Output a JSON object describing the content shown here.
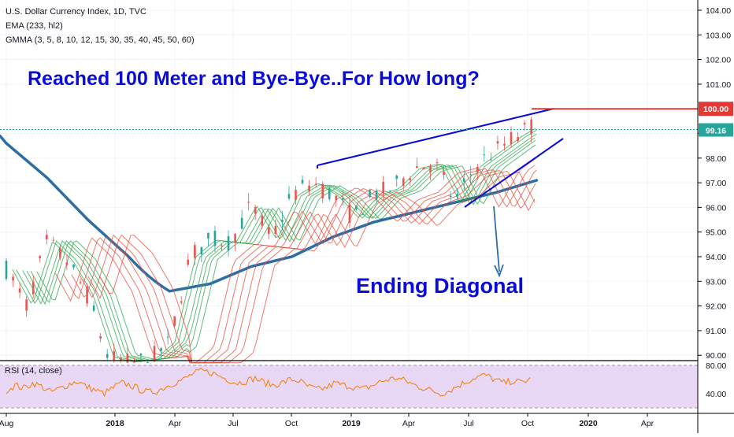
{
  "header": {
    "symbol_line": "U.S. Dollar Currency Index, 1D, TVC",
    "ema_line": "EMA (233, hl2)",
    "gmma_line": "GMMA (3, 5, 8, 10, 12, 15, 30, 35, 40, 45, 50, 60)"
  },
  "annotations": {
    "headline": "Reached 100 Meter and Bye-Bye..For How long?",
    "pattern": "Ending Diagonal"
  },
  "rsi": {
    "label": "RSI (14, close)",
    "ticks": [
      "80.00",
      "40.00"
    ]
  },
  "colors": {
    "annotation_blue": "#0b0bd6",
    "ema_line": "#2e6da4",
    "gmma_fast": "#2aa84a",
    "gmma_slow": "#e74c3c",
    "candle_up": "#26a69a",
    "candle_down": "#ef5350",
    "level_line": "#e53935",
    "current_price": "#26a69a",
    "rsi_line": "#f57c00",
    "rsi_band": "#e9d8f5"
  },
  "chart_data": {
    "type": "line",
    "y_axis_ticks": [
      "104.00",
      "103.00",
      "102.00",
      "101.00",
      "99.00",
      "98.00",
      "97.00",
      "96.00",
      "95.00",
      "94.00",
      "93.00",
      "92.00",
      "91.00",
      "90.00"
    ],
    "x_axis_ticks": [
      "Aug",
      "2018",
      "Apr",
      "Jul",
      "Oct",
      "2019",
      "Apr",
      "Jul",
      "Oct",
      "2020",
      "Apr"
    ],
    "ylim": [
      89.9,
      104.2
    ],
    "level_label": "100.00",
    "current_price_label": "99.16",
    "price_ohlc_approx": [
      [
        "2017-08",
        93.5
      ],
      [
        "2017-09",
        92.0
      ],
      [
        "2017-10",
        94.6
      ],
      [
        "2017-11",
        93.8
      ],
      [
        "2017-12",
        92.4
      ],
      [
        "2018-01",
        89.9
      ],
      [
        "2018-02",
        89.7
      ],
      [
        "2018-03",
        89.8
      ],
      [
        "2018-04",
        90.5
      ],
      [
        "2018-05",
        94.0
      ],
      [
        "2018-06",
        94.7
      ],
      [
        "2018-07",
        94.6
      ],
      [
        "2018-08",
        96.1
      ],
      [
        "2018-09",
        94.7
      ],
      [
        "2018-10",
        96.5
      ],
      [
        "2018-11",
        97.0
      ],
      [
        "2018-12",
        96.5
      ],
      [
        "2019-01",
        95.6
      ],
      [
        "2019-02",
        96.5
      ],
      [
        "2019-03",
        96.8
      ],
      [
        "2019-04",
        97.6
      ],
      [
        "2019-05",
        97.8
      ],
      [
        "2019-06",
        96.2
      ],
      [
        "2019-07",
        97.7
      ],
      [
        "2019-08",
        98.3
      ],
      [
        "2019-09",
        98.9
      ],
      [
        "2019-10",
        99.4
      ]
    ],
    "ema_233_approx": [
      [
        "2017-08",
        98.6
      ],
      [
        "2017-10",
        97.2
      ],
      [
        "2017-12",
        95.5
      ],
      [
        "2018-02",
        94.0
      ],
      [
        "2018-04",
        92.6
      ],
      [
        "2018-06",
        92.9
      ],
      [
        "2018-08",
        93.6
      ],
      [
        "2018-10",
        94.0
      ],
      [
        "2018-12",
        94.8
      ],
      [
        "2019-02",
        95.4
      ],
      [
        "2019-04",
        95.8
      ],
      [
        "2019-06",
        96.2
      ],
      [
        "2019-08",
        96.6
      ],
      [
        "2019-10",
        97.1
      ]
    ],
    "trendlines": [
      {
        "from": [
          "2018-11",
          97.8
        ],
        "to": [
          "2019-10",
          100.0
        ]
      },
      {
        "from": [
          "2019-06",
          96.0
        ],
        "to": [
          "2019-11",
          98.9
        ]
      }
    ],
    "horizontal_levels": [
      100.0,
      99.16
    ],
    "rsi_series": [
      45,
      52,
      48,
      55,
      50,
      42,
      47,
      53,
      58,
      50,
      45,
      40,
      48,
      55,
      52,
      46,
      42,
      44,
      50,
      56,
      60,
      68,
      72,
      70,
      65,
      60,
      55,
      58,
      62,
      56,
      52,
      55,
      60,
      58,
      50,
      46,
      48,
      55,
      52,
      50,
      46,
      50,
      56,
      60,
      62,
      58,
      52,
      48,
      44,
      40,
      45,
      52,
      58,
      64,
      66,
      60,
      55,
      58,
      56,
      60
    ]
  }
}
